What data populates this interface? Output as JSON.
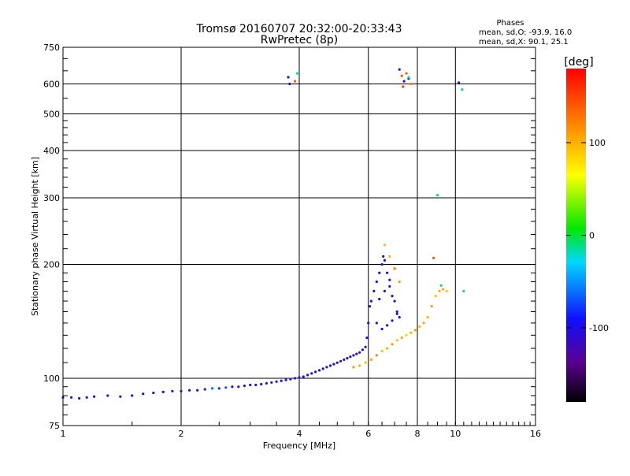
{
  "chart_data": {
    "type": "scatter",
    "title": "Tromsø 20160707 20:32:00-20:33:43",
    "subtitle": "RwPretec (8p)",
    "xlabel": "Frequency [MHz]",
    "ylabel": "Stationary phase Virtual Height [km]",
    "x_scale": "log2",
    "y_scale": "log",
    "xlim": [
      1,
      16
    ],
    "ylim": [
      75,
      750
    ],
    "x_ticks": [
      1,
      2,
      4,
      6,
      8,
      10,
      16
    ],
    "y_ticks": [
      75,
      100,
      200,
      300,
      400,
      500,
      600,
      750
    ],
    "grid": true,
    "phase_info": {
      "title": "Phases",
      "line_o": "mean, sd,O: -93.9, 16.0",
      "line_x": "mean, sd,X:  90.1, 25.1"
    },
    "colorbar": {
      "label": "[deg]",
      "range": [
        -180,
        180
      ],
      "ticks": [
        100,
        0,
        -100
      ],
      "colormap": "rainbow-black-to-red"
    },
    "series": [
      {
        "trace": "o-trace-low",
        "points": [
          [
            1.0,
            89,
            -105
          ],
          [
            1.05,
            89,
            -110
          ],
          [
            1.1,
            88.5,
            -100
          ],
          [
            1.15,
            89,
            -95
          ],
          [
            1.2,
            89.5,
            -110
          ],
          [
            1.3,
            90,
            -100
          ],
          [
            1.4,
            89.5,
            -105
          ],
          [
            1.5,
            90,
            -110
          ],
          [
            1.6,
            91,
            -100
          ],
          [
            1.7,
            91.5,
            -95
          ],
          [
            1.8,
            92,
            -105
          ],
          [
            1.9,
            92.5,
            -100
          ],
          [
            2.0,
            92.5,
            -110
          ],
          [
            2.1,
            93,
            -95
          ],
          [
            2.2,
            93,
            -100
          ],
          [
            2.3,
            93.5,
            -105
          ],
          [
            2.4,
            94,
            -60
          ],
          [
            2.5,
            94,
            -80
          ],
          [
            2.6,
            94.5,
            -70
          ],
          [
            2.7,
            95,
            -100
          ],
          [
            2.8,
            95,
            -90
          ],
          [
            2.9,
            95.5,
            -110
          ],
          [
            3.0,
            96,
            -95
          ],
          [
            3.1,
            96,
            -105
          ],
          [
            3.2,
            96.5,
            -100
          ],
          [
            3.3,
            97,
            -110
          ],
          [
            3.4,
            97.5,
            -95
          ],
          [
            3.5,
            98,
            -100
          ],
          [
            3.6,
            98.5,
            -105
          ],
          [
            3.7,
            99,
            -110
          ],
          [
            3.8,
            99.5,
            -95
          ],
          [
            3.9,
            100,
            -100
          ],
          [
            4.0,
            100.5,
            -105
          ],
          [
            4.1,
            101,
            -110
          ],
          [
            4.2,
            102,
            -95
          ],
          [
            4.3,
            103,
            -100
          ],
          [
            4.4,
            104,
            -105
          ],
          [
            4.5,
            105,
            -110
          ],
          [
            4.6,
            106,
            -95
          ],
          [
            4.7,
            107,
            -100
          ],
          [
            4.8,
            108,
            -105
          ],
          [
            4.9,
            109,
            -95
          ],
          [
            5.0,
            110,
            -100
          ],
          [
            5.1,
            111,
            -105
          ],
          [
            5.2,
            112,
            -110
          ],
          [
            5.3,
            113,
            -100
          ],
          [
            5.4,
            114,
            -95
          ],
          [
            5.5,
            115,
            -105
          ],
          [
            5.6,
            116,
            -100
          ],
          [
            5.7,
            117,
            -110
          ],
          [
            5.8,
            119,
            -95
          ],
          [
            5.9,
            121,
            -100
          ]
        ]
      },
      {
        "trace": "o-trace-steep",
        "points": [
          [
            5.95,
            128,
            -100
          ],
          [
            6.0,
            140,
            -105
          ],
          [
            6.05,
            155,
            -95
          ],
          [
            6.1,
            160,
            -110
          ],
          [
            6.2,
            170,
            -100
          ],
          [
            6.3,
            180,
            -105
          ],
          [
            6.4,
            190,
            -95
          ],
          [
            6.5,
            200,
            -100
          ],
          [
            6.55,
            210,
            -110
          ],
          [
            6.6,
            205,
            -105
          ],
          [
            6.7,
            190,
            -100
          ],
          [
            6.8,
            175,
            -95
          ],
          [
            6.9,
            165,
            -105
          ],
          [
            7.0,
            160,
            -100
          ],
          [
            7.1,
            150,
            -110
          ],
          [
            7.2,
            145,
            -100
          ],
          [
            6.3,
            140,
            -105
          ],
          [
            6.5,
            135,
            -95
          ],
          [
            6.7,
            138,
            -100
          ],
          [
            6.9,
            142,
            -110
          ],
          [
            7.1,
            148,
            -100
          ],
          [
            6.4,
            162,
            -105
          ],
          [
            6.6,
            170,
            -95
          ],
          [
            6.8,
            182,
            -100
          ],
          [
            7.0,
            195,
            -105
          ]
        ]
      },
      {
        "trace": "x-trace",
        "points": [
          [
            5.5,
            107,
            110
          ],
          [
            5.7,
            108,
            100
          ],
          [
            5.9,
            110,
            95
          ],
          [
            6.1,
            112,
            105
          ],
          [
            6.3,
            115,
            120
          ],
          [
            6.5,
            118,
            90
          ],
          [
            6.7,
            120,
            100
          ],
          [
            6.9,
            123,
            110
          ],
          [
            7.1,
            126,
            95
          ],
          [
            7.3,
            128,
            105
          ],
          [
            7.5,
            130,
            85
          ],
          [
            7.7,
            132,
            100
          ],
          [
            7.9,
            134,
            110
          ],
          [
            8.1,
            137,
            95
          ],
          [
            8.3,
            140,
            105
          ],
          [
            8.5,
            145,
            100
          ],
          [
            8.7,
            155,
            110
          ],
          [
            8.9,
            165,
            95
          ],
          [
            9.1,
            170,
            100
          ],
          [
            9.3,
            172,
            105
          ],
          [
            9.5,
            170,
            90
          ],
          [
            6.6,
            225,
            95
          ],
          [
            6.8,
            210,
            100
          ],
          [
            7.0,
            195,
            120
          ],
          [
            7.2,
            180,
            110
          ],
          [
            8.8,
            208,
            140
          ],
          [
            9.2,
            176,
            -10
          ],
          [
            10.5,
            170,
            -10
          ]
        ]
      },
      {
        "trace": "multi-hop",
        "points": [
          [
            3.75,
            625,
            -100
          ],
          [
            3.78,
            600,
            -110
          ],
          [
            3.95,
            640,
            -20
          ],
          [
            3.9,
            610,
            140
          ],
          [
            7.2,
            655,
            -100
          ],
          [
            7.3,
            630,
            150
          ],
          [
            7.4,
            610,
            -110
          ],
          [
            7.5,
            640,
            140
          ],
          [
            7.6,
            620,
            -100
          ],
          [
            7.7,
            600,
            120
          ],
          [
            7.35,
            590,
            150
          ],
          [
            7.6,
            625,
            -20
          ],
          [
            10.2,
            605,
            -100
          ],
          [
            10.4,
            580,
            -10
          ],
          [
            9.0,
            305,
            -10
          ]
        ]
      }
    ]
  }
}
